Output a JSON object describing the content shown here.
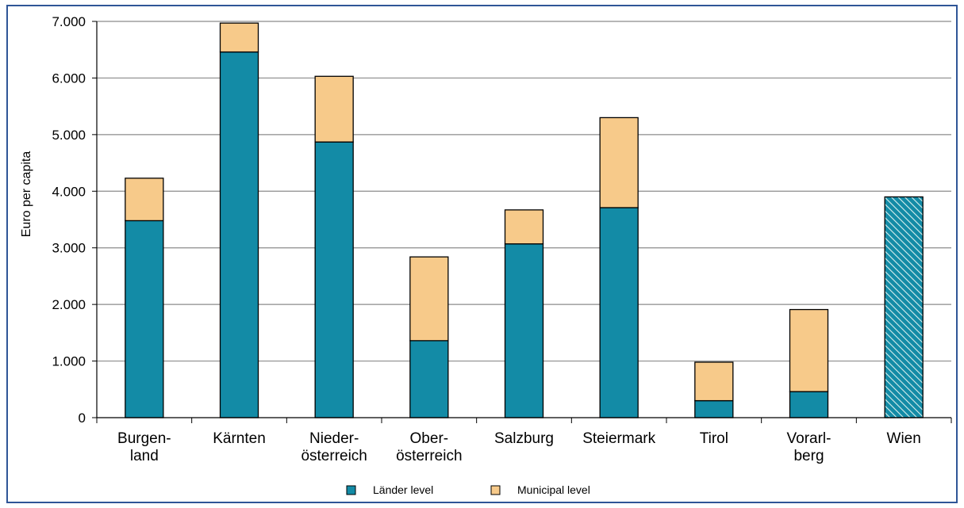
{
  "chart_data": {
    "type": "bar",
    "stacked": true,
    "ylabel": "Euro per capita",
    "ylim": [
      0,
      7000
    ],
    "yticks": [
      "0",
      "1.000",
      "2.000",
      "3.000",
      "4.000",
      "5.000",
      "6.000",
      "7.000"
    ],
    "grid": true,
    "legend_position": "bottom",
    "categories": [
      [
        "Burgen-",
        "land"
      ],
      [
        "Kärnten"
      ],
      [
        "Nieder-",
        "österreich"
      ],
      [
        "Ober-",
        "österreich"
      ],
      [
        "Salzburg"
      ],
      [
        "Steiermark"
      ],
      [
        "Tirol"
      ],
      [
        "Vorarl-",
        "berg"
      ],
      [
        "Wien"
      ]
    ],
    "series": [
      {
        "name": "Länder level",
        "color": "#138ba6",
        "values": [
          3480,
          6460,
          4870,
          1360,
          3070,
          3710,
          300,
          460,
          3900
        ]
      },
      {
        "name": "Municipal level",
        "color": "#f7ca8a",
        "values": [
          750,
          510,
          1160,
          1480,
          600,
          1590,
          680,
          1450,
          0
        ]
      }
    ],
    "hatched_categories": [
      "Wien"
    ]
  }
}
